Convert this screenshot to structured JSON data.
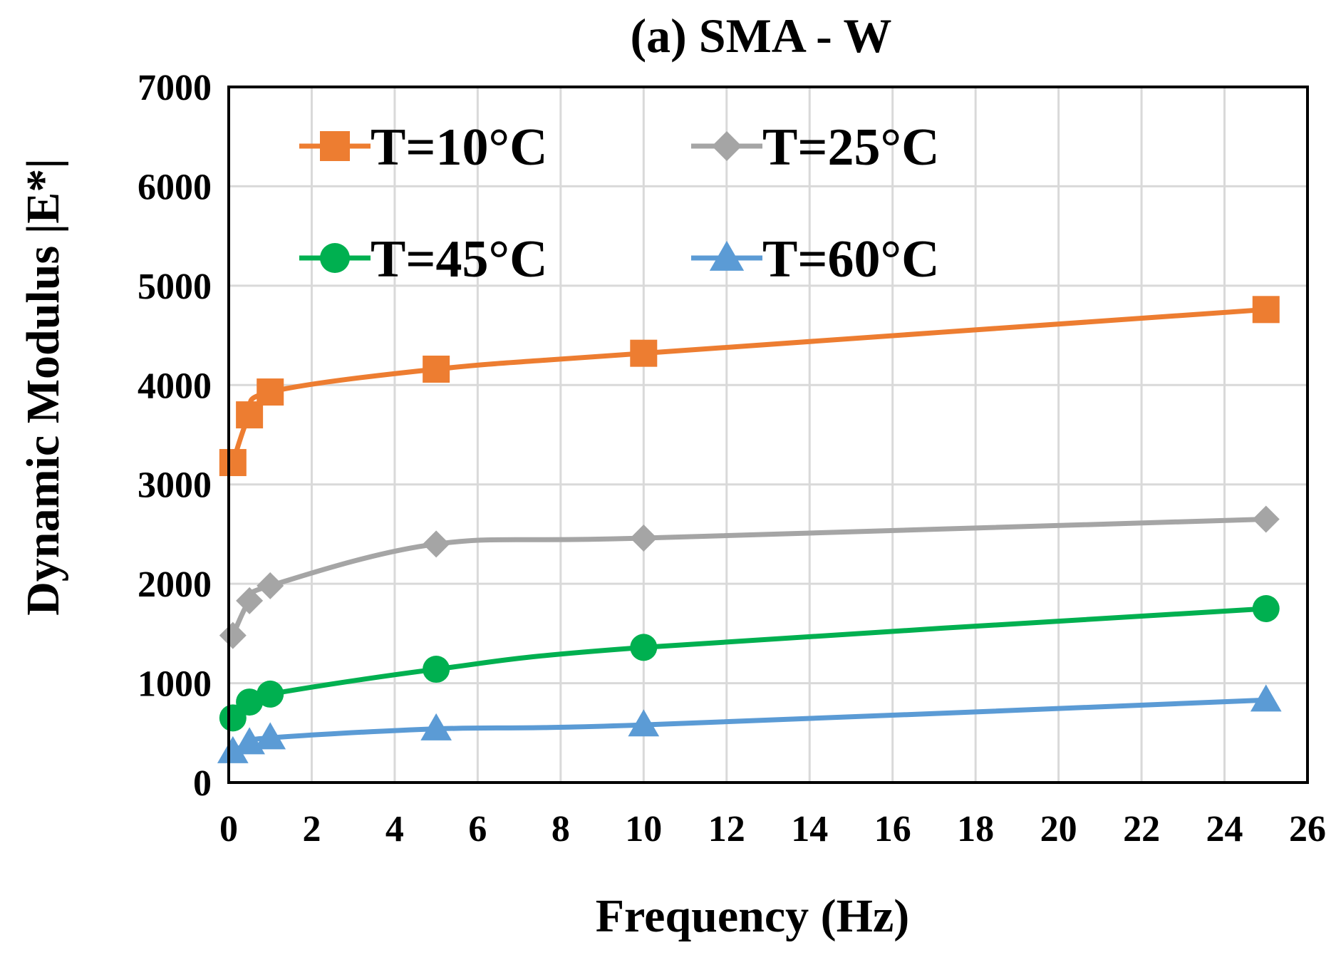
{
  "chart_data": {
    "type": "line",
    "title": "(a) SMA - W",
    "xlabel": "Frequency (Hz)",
    "ylabel": "Dynamic Modulus |E*|",
    "xlim": [
      0,
      26
    ],
    "ylim": [
      0,
      7000
    ],
    "x_ticks": [
      0,
      2,
      4,
      6,
      8,
      10,
      12,
      14,
      16,
      18,
      20,
      22,
      24,
      26
    ],
    "y_ticks": [
      0,
      1000,
      2000,
      3000,
      4000,
      5000,
      6000,
      7000
    ],
    "x_tick_labels": [
      "0",
      "2",
      "4",
      "6",
      "8",
      "10",
      "12",
      "14",
      "16",
      "18",
      "20",
      "22",
      "24",
      "26"
    ],
    "y_tick_labels": [
      "0",
      "1000",
      "2000",
      "3000",
      "4000",
      "5000",
      "6000",
      "7000"
    ],
    "grid": true,
    "legend_position": "top, inside plot, two columns",
    "x": [
      0.1,
      0.5,
      1,
      5,
      10,
      25
    ],
    "series": [
      {
        "name": "T=10°C",
        "marker": "square",
        "color": "#ED7D31",
        "values": [
          3220,
          3700,
          3930,
          4160,
          4320,
          4760
        ]
      },
      {
        "name": "T=25°C",
        "marker": "diamond",
        "color": "#A5A5A5",
        "values": [
          1480,
          1830,
          1980,
          2400,
          2460,
          2650
        ]
      },
      {
        "name": "T=45°C",
        "marker": "circle",
        "color": "#00B050",
        "values": [
          650,
          810,
          890,
          1140,
          1360,
          1750
        ]
      },
      {
        "name": "T=60°C",
        "marker": "triangle",
        "color": "#5B9BD5",
        "values": [
          310,
          400,
          450,
          540,
          580,
          830
        ]
      }
    ]
  }
}
